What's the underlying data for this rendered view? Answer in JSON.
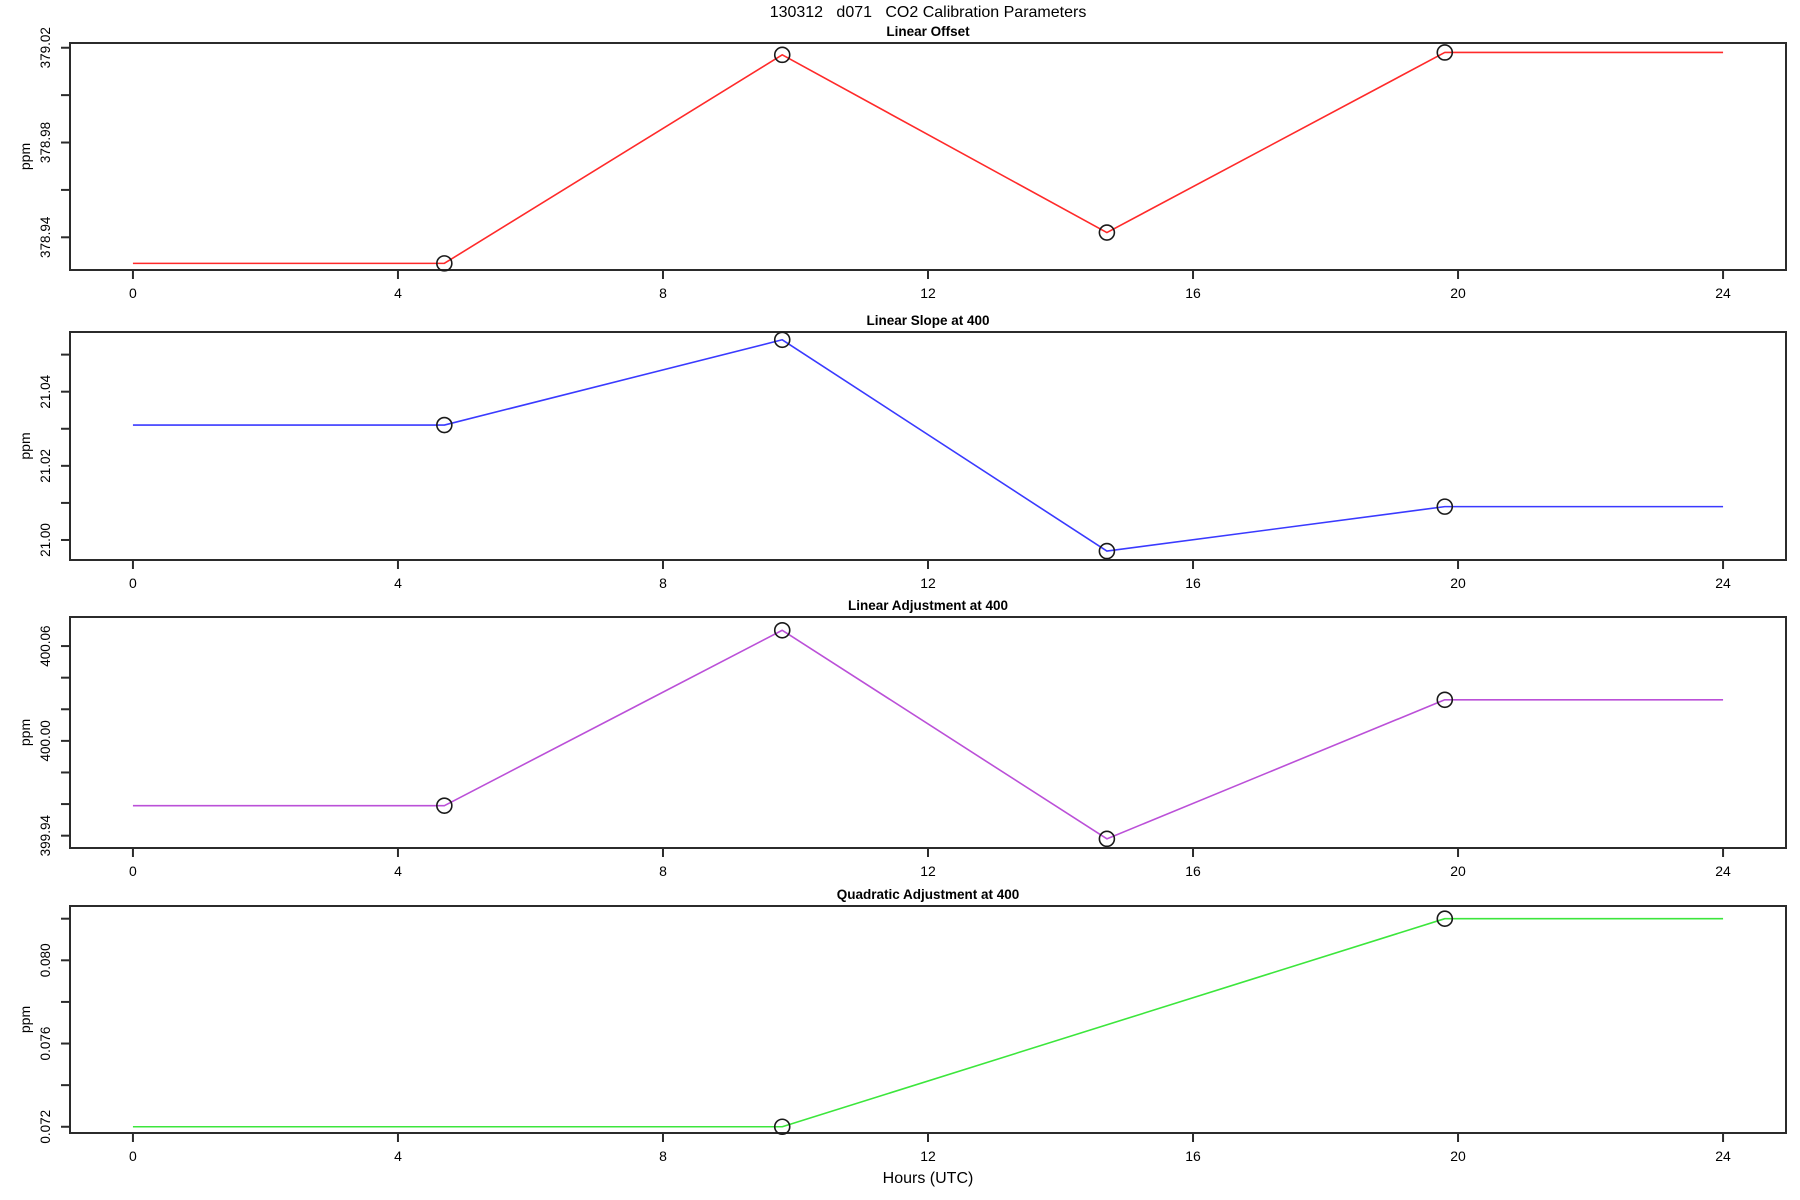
{
  "title": "130312   d071   CO2 Calibration Parameters",
  "xlabel": "Hours (UTC)",
  "x_axis": {
    "ticks": [
      0,
      4,
      8,
      12,
      16,
      20,
      24
    ],
    "tick_labels": [
      "0",
      "4",
      "8",
      "12",
      "16",
      "20",
      "24"
    ],
    "xlim": [
      -0.95,
      24.95
    ]
  },
  "chart_data": [
    {
      "type": "line",
      "title": "Linear Offset",
      "ylabel": "ppm",
      "color": "#ff2a2a",
      "x": [
        0,
        4.7,
        9.8,
        14.7,
        19.8,
        24
      ],
      "y": [
        378.929,
        378.929,
        379.017,
        378.942,
        379.018,
        379.018
      ],
      "marker_x": [
        4.7,
        9.8,
        14.7,
        19.8
      ],
      "marker_y": [
        378.929,
        379.017,
        378.942,
        379.018
      ],
      "ylim": [
        378.9262,
        379.022
      ],
      "yticks": [
        378.94,
        378.96,
        378.98,
        379.0,
        379.02
      ],
      "ytick_labels": [
        "378.94",
        "",
        "378.98",
        "",
        "379.02"
      ]
    },
    {
      "type": "line",
      "title": "Linear Slope at 400",
      "ylabel": "ppm",
      "color": "#3a3aff",
      "x": [
        0,
        4.7,
        9.8,
        14.7,
        19.8,
        24
      ],
      "y": [
        21.031,
        21.031,
        21.054,
        20.997,
        21.009,
        21.009
      ],
      "marker_x": [
        4.7,
        9.8,
        14.7,
        19.8
      ],
      "marker_y": [
        21.031,
        21.054,
        20.997,
        21.009
      ],
      "ylim": [
        20.9946,
        21.0561
      ],
      "yticks": [
        21.0,
        21.01,
        21.02,
        21.03,
        21.04,
        21.05
      ],
      "ytick_labels": [
        "21.00",
        "",
        "21.02",
        "",
        "21.04",
        ""
      ]
    },
    {
      "type": "line",
      "title": "Linear Adjustment at 400",
      "ylabel": "ppm",
      "color": "#bb50d8",
      "x": [
        0,
        4.7,
        9.8,
        14.7,
        19.8,
        24
      ],
      "y": [
        399.959,
        399.959,
        400.07,
        399.938,
        400.026,
        400.026
      ],
      "marker_x": [
        4.7,
        9.8,
        14.7,
        19.8
      ],
      "marker_y": [
        399.959,
        400.07,
        399.938,
        400.026
      ],
      "ylim": [
        399.9322,
        400.0784
      ],
      "yticks": [
        399.94,
        399.96,
        399.98,
        400.0,
        400.02,
        400.04,
        400.06
      ],
      "ytick_labels": [
        "399.94",
        "",
        "",
        "400.00",
        "",
        "",
        "400.06"
      ]
    },
    {
      "type": "line",
      "title": "Quadratic Adjustment at 400",
      "ylabel": "ppm",
      "color": "#3ce63c",
      "x": [
        0,
        9.8,
        19.8,
        24
      ],
      "y": [
        0.072,
        0.072,
        0.082,
        0.082
      ],
      "marker_x": [
        9.8,
        19.8
      ],
      "marker_y": [
        0.072,
        0.082
      ],
      "ylim": [
        0.0717,
        0.08261
      ],
      "yticks": [
        0.072,
        0.074,
        0.076,
        0.078,
        0.08,
        0.082
      ],
      "ytick_labels": [
        "0.072",
        "",
        "0.076",
        "",
        "0.080",
        ""
      ]
    }
  ]
}
